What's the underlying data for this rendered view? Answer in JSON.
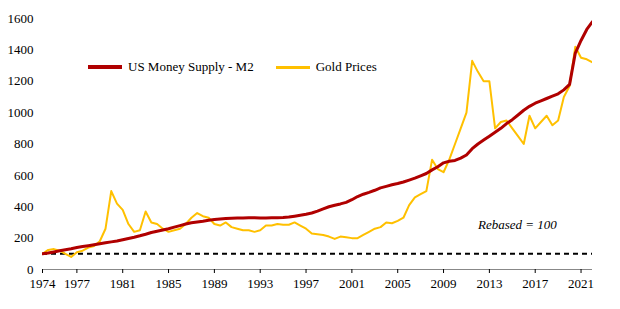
{
  "chart_data": {
    "type": "line",
    "x": [
      1974,
      1974.5,
      1975,
      1975.5,
      1976,
      1976.5,
      1977,
      1977.5,
      1978,
      1978.5,
      1979,
      1979.5,
      1980,
      1980.5,
      1981,
      1981.5,
      1982,
      1982.5,
      1983,
      1983.5,
      1984,
      1984.5,
      1985,
      1985.5,
      1986,
      1986.5,
      1987,
      1987.5,
      1988,
      1988.5,
      1989,
      1989.5,
      1990,
      1990.5,
      1991,
      1991.5,
      1992,
      1992.5,
      1993,
      1993.5,
      1994,
      1994.5,
      1995,
      1995.5,
      1996,
      1996.5,
      1997,
      1997.5,
      1998,
      1998.5,
      1999,
      1999.5,
      2000,
      2000.5,
      2001,
      2001.5,
      2002,
      2002.5,
      2003,
      2003.5,
      2004,
      2004.5,
      2005,
      2005.5,
      2006,
      2006.5,
      2007,
      2007.5,
      2008,
      2008.5,
      2009,
      2009.5,
      2010,
      2010.5,
      2011,
      2011.5,
      2012,
      2012.5,
      2013,
      2013.5,
      2014,
      2014.5,
      2015,
      2015.5,
      2016,
      2016.5,
      2017,
      2017.5,
      2018,
      2018.5,
      2019,
      2019.5,
      2020,
      2020.5,
      2021,
      2021.5,
      2022
    ],
    "series": [
      {
        "name": "US Money Supply - M2",
        "color": "#b00000",
        "values": [
          100,
          105,
          112,
          119,
          126,
          132,
          140,
          146,
          152,
          158,
          164,
          170,
          176,
          182,
          190,
          198,
          206,
          215,
          225,
          236,
          244,
          252,
          260,
          270,
          280,
          290,
          298,
          303,
          308,
          314,
          318,
          322,
          325,
          327,
          328,
          329,
          330,
          330,
          329,
          329,
          330,
          330,
          331,
          334,
          340,
          346,
          352,
          360,
          372,
          386,
          400,
          410,
          418,
          428,
          445,
          465,
          480,
          492,
          505,
          520,
          530,
          540,
          548,
          558,
          570,
          582,
          597,
          612,
          635,
          655,
          680,
          690,
          695,
          710,
          730,
          770,
          800,
          825,
          850,
          875,
          900,
          930,
          955,
          985,
          1015,
          1040,
          1060,
          1075,
          1090,
          1105,
          1120,
          1145,
          1180,
          1380,
          1460,
          1530,
          1580
        ]
      },
      {
        "name": "Gold Prices",
        "color": "#ffc000",
        "values": [
          100,
          125,
          130,
          120,
          100,
          80,
          110,
          120,
          140,
          150,
          180,
          260,
          500,
          420,
          380,
          290,
          240,
          250,
          370,
          300,
          290,
          260,
          240,
          250,
          260,
          290,
          330,
          360,
          340,
          330,
          290,
          280,
          300,
          270,
          260,
          250,
          250,
          240,
          250,
          280,
          280,
          290,
          285,
          285,
          300,
          280,
          260,
          230,
          225,
          220,
          210,
          195,
          210,
          205,
          200,
          200,
          220,
          240,
          260,
          270,
          300,
          295,
          310,
          330,
          410,
          460,
          480,
          500,
          700,
          640,
          620,
          700,
          800,
          900,
          1000,
          1330,
          1260,
          1200,
          1200,
          900,
          940,
          950,
          900,
          850,
          800,
          980,
          900,
          940,
          980,
          920,
          950,
          1100,
          1170,
          1420,
          1350,
          1340,
          1320
        ]
      }
    ],
    "xlim": [
      1974,
      2022
    ],
    "xticks": [
      1974,
      1977,
      1981,
      1985,
      1989,
      1993,
      1997,
      2001,
      2005,
      2009,
      2013,
      2017,
      2021
    ],
    "ylim": [
      0,
      1600
    ],
    "yticks": [
      0,
      200,
      400,
      600,
      800,
      1000,
      1200,
      1400,
      1600
    ],
    "baseline": 100,
    "annotation": "Rebased = 100",
    "legend": "top-left",
    "grid": false
  }
}
